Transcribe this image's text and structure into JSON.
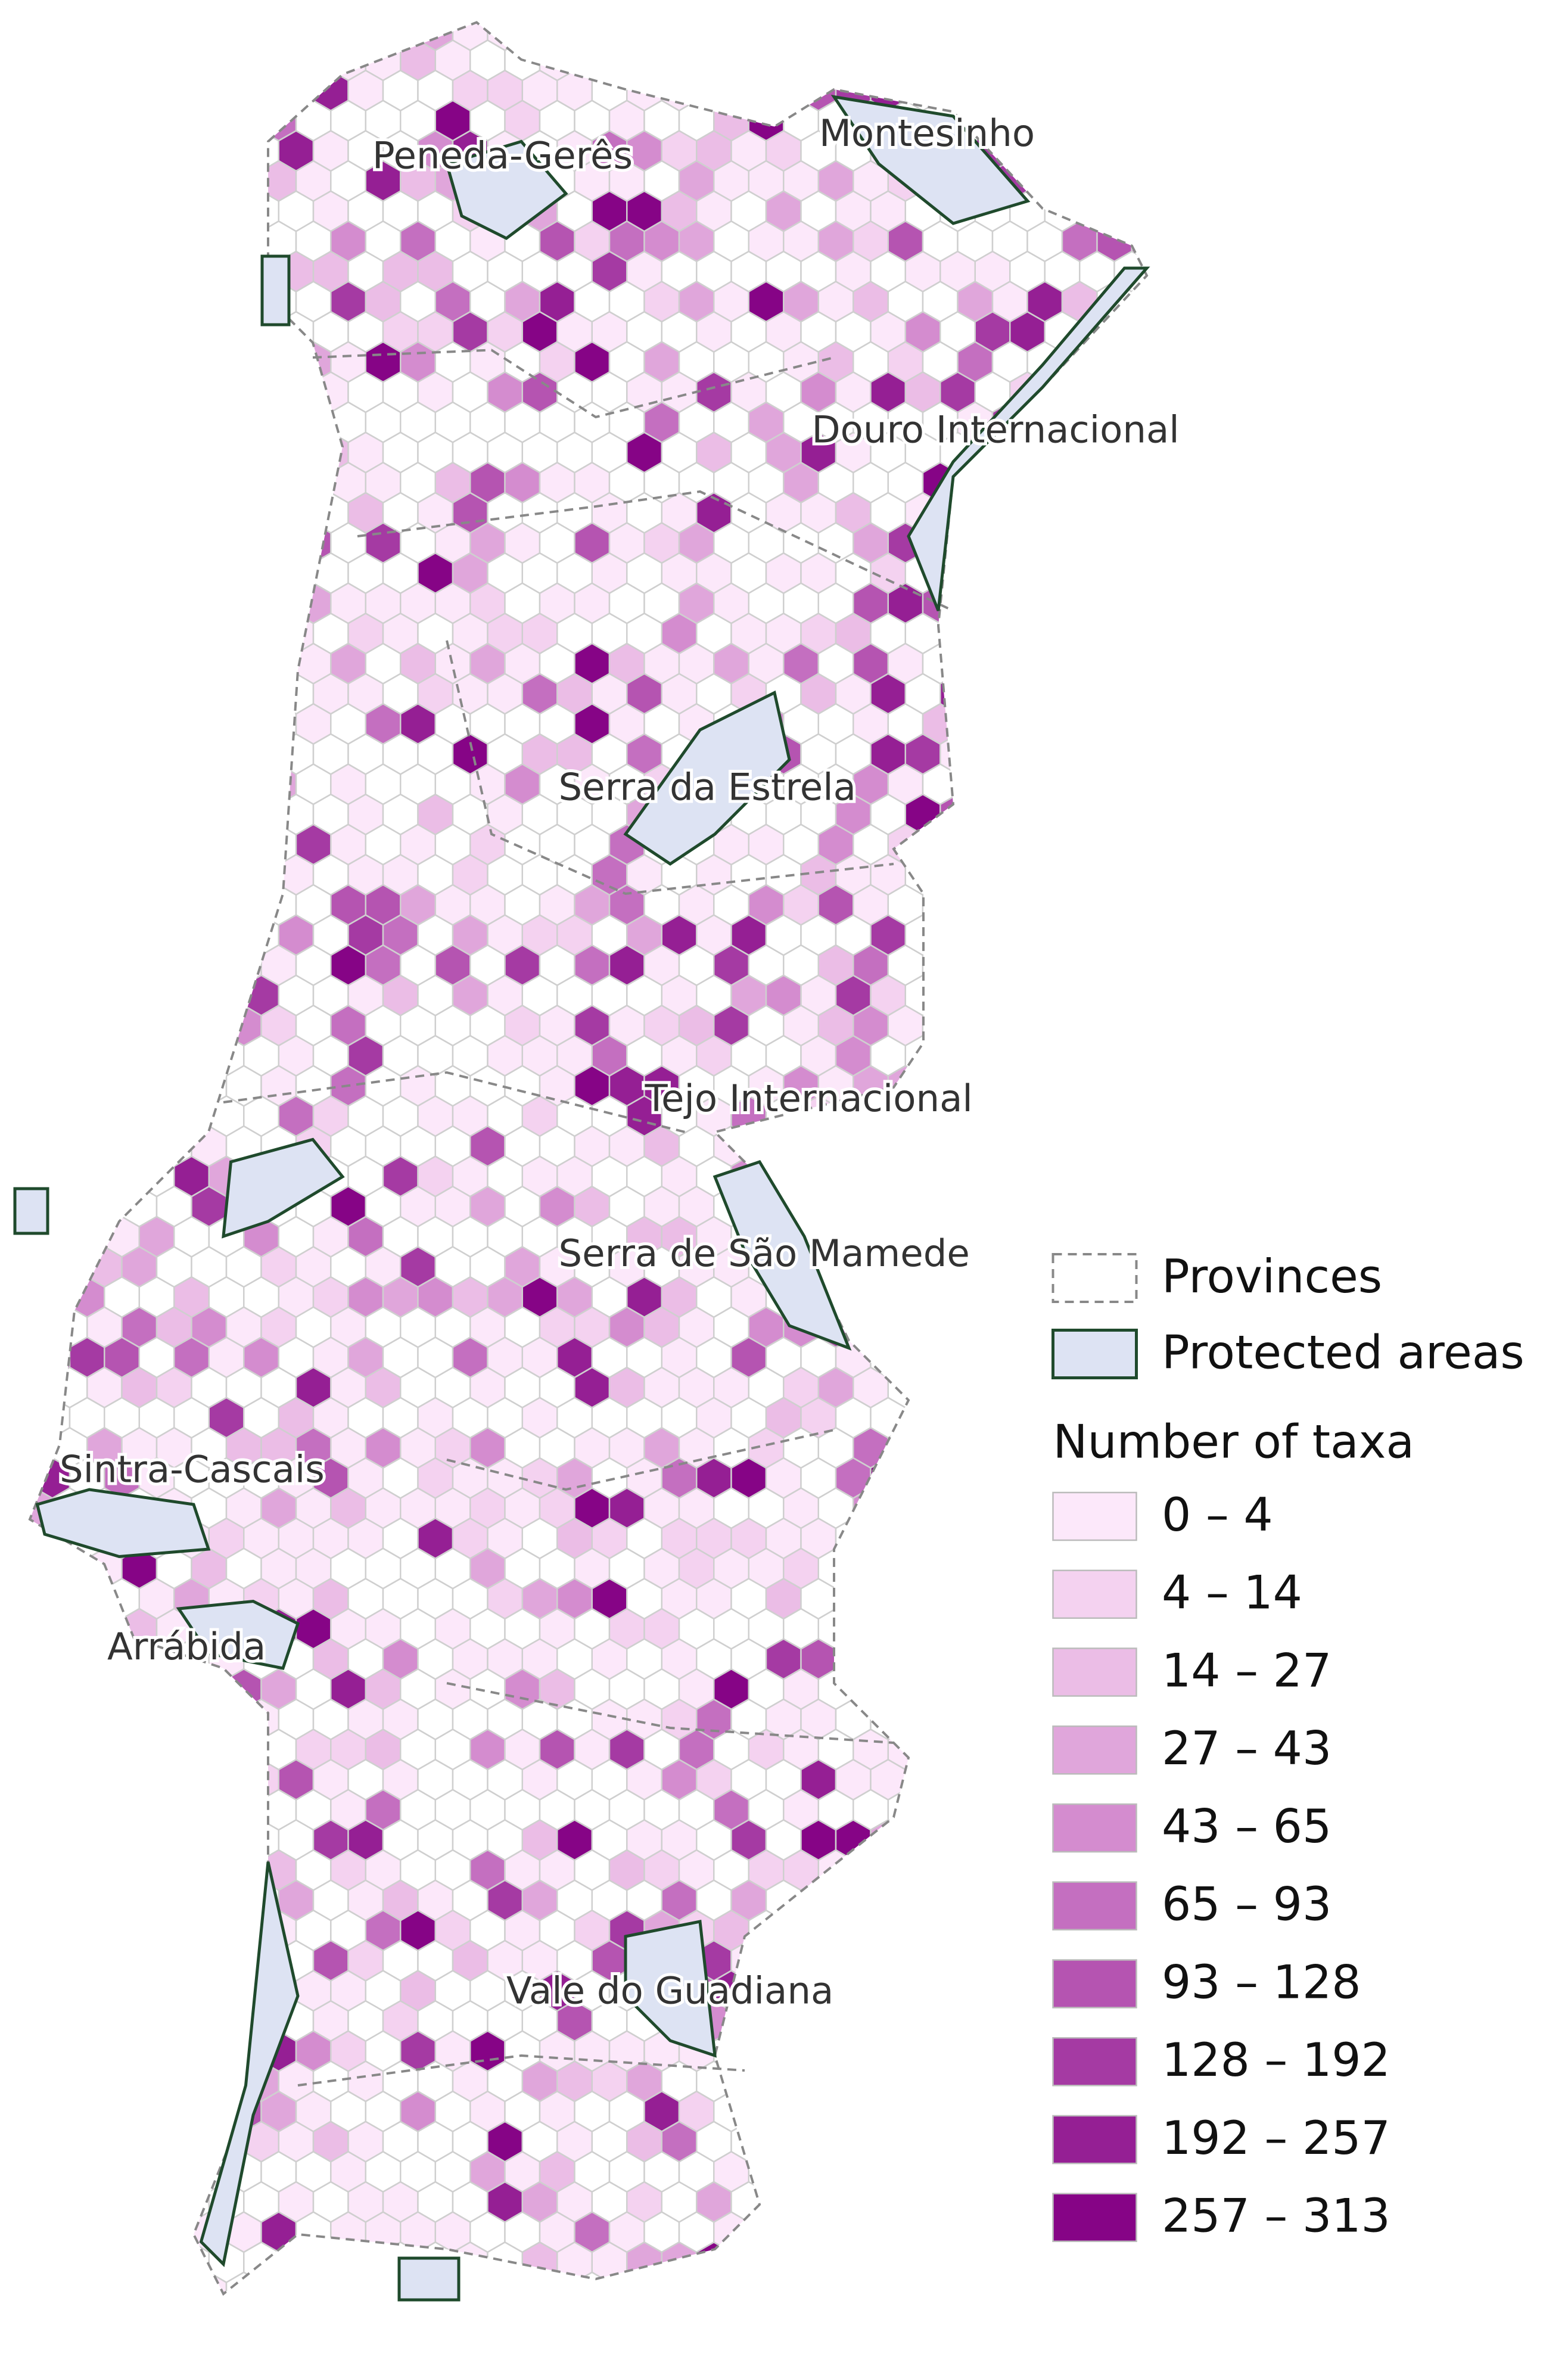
{
  "map": {
    "labels": [
      "Peneda-Gerês",
      "Montesinho",
      "Douro Internacional",
      "Serra da Estrela",
      "Tejo Internacional",
      "Serra de São Mamede",
      "Sintra-Cascais",
      "Arrábida",
      "Vale do Guadiana"
    ],
    "legend": {
      "provinces": "Provinces",
      "protected": "Protected areas",
      "title": "Number of taxa",
      "classes": [
        {
          "label": "0 – 4",
          "color": "#fce8fa"
        },
        {
          "label": "4 – 14",
          "color": "#f4d2f0"
        },
        {
          "label": "14 – 27",
          "color": "#ebbde6"
        },
        {
          "label": "27 – 43",
          "color": "#e0a6db"
        },
        {
          "label": "43 – 65",
          "color": "#d48ccf"
        },
        {
          "label": "65 – 93",
          "color": "#c46fc0"
        },
        {
          "label": "93 – 128",
          "color": "#b554b1"
        },
        {
          "label": "128 – 192",
          "color": "#a53aa3"
        },
        {
          "label": "192 – 257",
          "color": "#951f94"
        },
        {
          "label": "257 – 313",
          "color": "#860486"
        }
      ]
    }
  }
}
